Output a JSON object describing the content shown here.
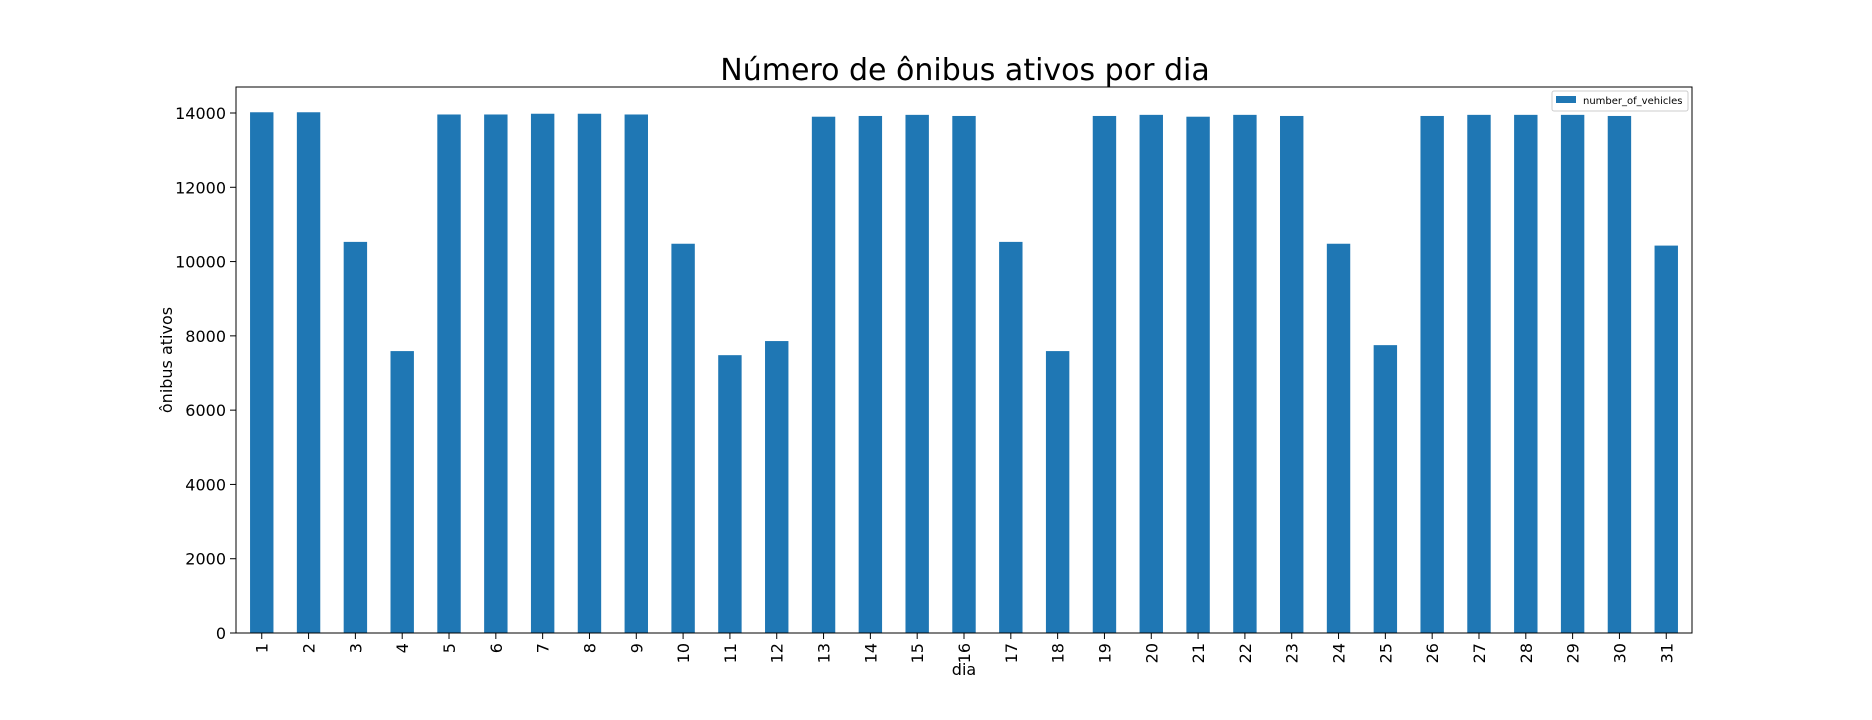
{
  "chart_data": {
    "type": "bar",
    "title": "Número de ônibus ativos por dia",
    "xlabel": "dia",
    "ylabel": "ônibus ativos",
    "categories": [
      "1",
      "2",
      "3",
      "4",
      "5",
      "6",
      "7",
      "8",
      "9",
      "10",
      "11",
      "12",
      "13",
      "14",
      "15",
      "16",
      "17",
      "18",
      "19",
      "20",
      "21",
      "22",
      "23",
      "24",
      "25",
      "26",
      "27",
      "28",
      "29",
      "30",
      "31"
    ],
    "series": [
      {
        "name": "number_of_vehicles",
        "color": "#1f77b4",
        "values": [
          14020,
          14020,
          10530,
          7590,
          13960,
          13960,
          13980,
          13980,
          13960,
          10480,
          7480,
          7860,
          13900,
          13920,
          13950,
          13920,
          10530,
          7590,
          13920,
          13950,
          13900,
          13950,
          13920,
          10480,
          7750,
          13920,
          13950,
          13950,
          13950,
          13920,
          10430
        ]
      }
    ],
    "ylim": [
      0,
      14700
    ],
    "yticks": [
      0,
      2000,
      4000,
      6000,
      8000,
      10000,
      12000,
      14000
    ],
    "grid": false,
    "legend_position": "top-right"
  }
}
